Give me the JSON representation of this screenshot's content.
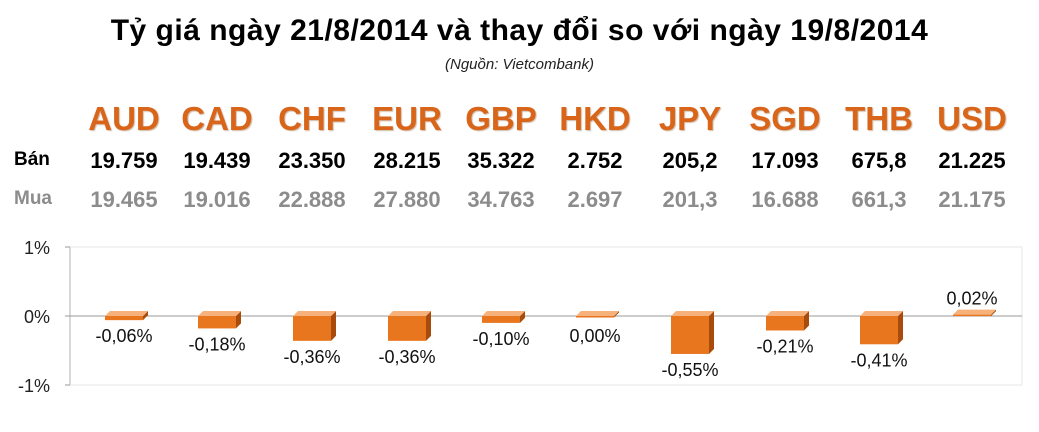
{
  "title": "Tỷ giá ngày 21/8/2014 và thay đổi so với ngày 19/8/2014",
  "source": "(Nguồn: Vietcombank)",
  "row_labels": {
    "sell": "Bán",
    "buy": "Mua"
  },
  "colors": {
    "currency": "#d9651a",
    "bar_fill": "#e8761f",
    "bar_top": "#f6b27a",
    "bar_side": "#a94b0c",
    "sell_text": "#000000",
    "buy_text": "#8c8c8c"
  },
  "table": [
    {
      "currency": "AUD",
      "sell": "19.759",
      "buy": "19.465"
    },
    {
      "currency": "CAD",
      "sell": "19.439",
      "buy": "19.016"
    },
    {
      "currency": "CHF",
      "sell": "23.350",
      "buy": "22.888"
    },
    {
      "currency": "EUR",
      "sell": "28.215",
      "buy": "27.880"
    },
    {
      "currency": "GBP",
      "sell": "35.322",
      "buy": "34.763"
    },
    {
      "currency": "HKD",
      "sell": "2.752",
      "buy": "2.697"
    },
    {
      "currency": "JPY",
      "sell": "205,2",
      "buy": "201,3"
    },
    {
      "currency": "SGD",
      "sell": "17.093",
      "buy": "16.688"
    },
    {
      "currency": "THB",
      "sell": "675,8",
      "buy": "661,3"
    },
    {
      "currency": "USD",
      "sell": "21.225",
      "buy": "21.175"
    }
  ],
  "chart_data": {
    "type": "bar",
    "categories": [
      "AUD",
      "CAD",
      "CHF",
      "EUR",
      "GBP",
      "HKD",
      "JPY",
      "SGD",
      "THB",
      "USD"
    ],
    "values": [
      -0.06,
      -0.18,
      -0.36,
      -0.36,
      -0.1,
      0.0,
      -0.55,
      -0.21,
      -0.41,
      0.02
    ],
    "data_labels": [
      "-0,06%",
      "-0,18%",
      "-0,36%",
      "-0,36%",
      "-0,10%",
      "0,00%",
      "-0,55%",
      "-0,21%",
      "-0,41%",
      "0,02%"
    ],
    "ylim": [
      -1,
      1
    ],
    "yticks": [
      1,
      0,
      -1
    ],
    "ytick_labels": [
      "1%",
      "0%",
      "-1%"
    ],
    "grid": false,
    "legend": "none"
  }
}
